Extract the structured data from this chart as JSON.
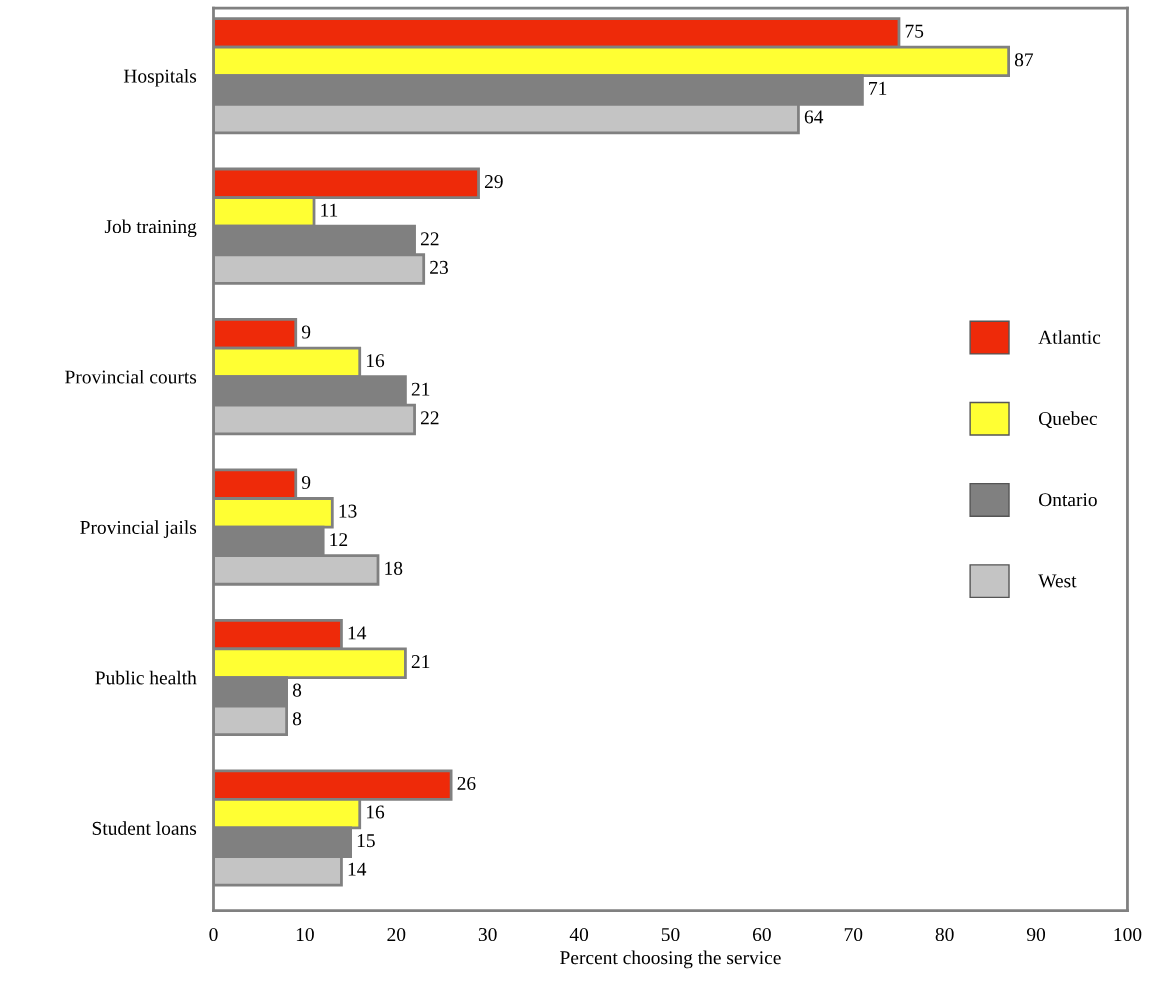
{
  "chart_data": {
    "type": "bar",
    "orientation": "horizontal",
    "xlabel": "Percent choosing the service",
    "categories": [
      "Hospitals",
      "Job training",
      "Provincial courts",
      "Provincial jails",
      "Public health",
      "Student loans"
    ],
    "series": [
      {
        "name": "Atlantic",
        "color": "#ee2a09",
        "values": [
          75,
          29,
          9,
          9,
          14,
          26
        ]
      },
      {
        "name": "Quebec",
        "color": "#ffff33",
        "values": [
          87,
          11,
          16,
          13,
          21,
          16
        ]
      },
      {
        "name": "Ontario",
        "color": "#808080",
        "values": [
          71,
          22,
          21,
          12,
          8,
          15
        ]
      },
      {
        "name": "West",
        "color": "#c4c4c4",
        "values": [
          64,
          23,
          22,
          18,
          8,
          14
        ]
      }
    ],
    "xlim": [
      0,
      100
    ],
    "xticks": [
      0,
      10,
      20,
      30,
      40,
      50,
      60,
      70,
      80,
      90,
      100
    ],
    "data_labels": true,
    "legend": "right",
    "grid": false
  }
}
